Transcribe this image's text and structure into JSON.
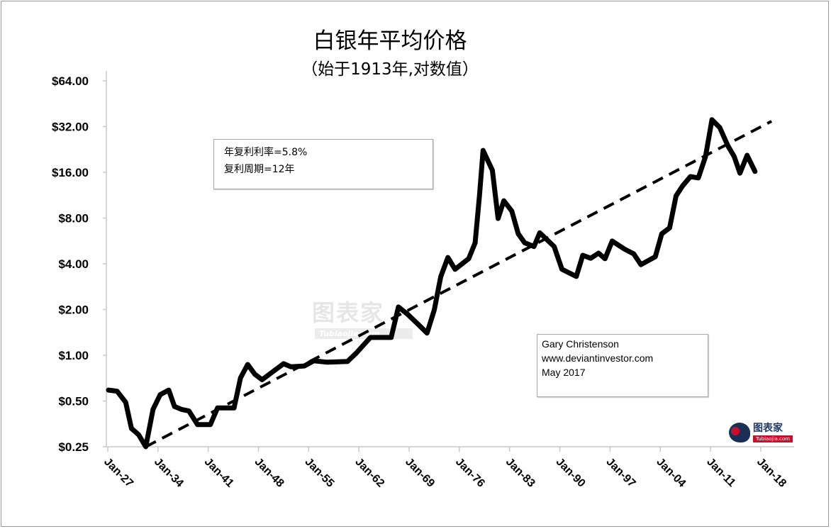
{
  "chart_data": {
    "type": "line",
    "title": "白银年平均价格",
    "subtitle": "（始于1913年,对数值）",
    "xlabel": "",
    "ylabel": "",
    "y_scale": "log2",
    "ylim": [
      0.25,
      64
    ],
    "xlim": [
      1927,
      2018
    ],
    "grid": false,
    "y_ticks": [
      "$0.25",
      "$0.50",
      "$1.00",
      "$2.00",
      "$4.00",
      "$8.00",
      "$16.00",
      "$32.00",
      "$64.00"
    ],
    "y_tick_values": [
      0.25,
      0.5,
      1,
      2,
      4,
      8,
      16,
      32,
      64
    ],
    "x_ticks": [
      "Jan-27",
      "Jan-34",
      "Jan-41",
      "Jan-48",
      "Jan-55",
      "Jan-62",
      "Jan-69",
      "Jan-76",
      "Jan-83",
      "Jan-90",
      "Jan-97",
      "Jan-04",
      "Jan-11",
      "Jan-18"
    ],
    "x_tick_values": [
      1927,
      1934,
      1941,
      1948,
      1955,
      1962,
      1969,
      1976,
      1983,
      1990,
      1997,
      2004,
      2011,
      2018
    ],
    "series": [
      {
        "style": "solid-thick",
        "color": "#000000",
        "x": [
          1927.1,
          1928.3,
          1929.5,
          1930.3,
          1931.3,
          1932.3,
          1933.3,
          1934.3,
          1935.5,
          1936.3,
          1937.3,
          1938.3,
          1939.5,
          1941.3,
          1942.3,
          1944.6,
          1945.5,
          1946.5,
          1947.5,
          1948.5,
          1949.7,
          1951.5,
          1952.5,
          1954.4,
          1955.7,
          1957.6,
          1960.4,
          1961.6,
          1962.8,
          1963.6,
          1966.5,
          1967.5,
          1968.8,
          1970.3,
          1971.5,
          1972.5,
          1973.4,
          1974.4,
          1975.4,
          1977.3,
          1978.2,
          1978.8,
          1979.3,
          1980.6,
          1981.4,
          1982.2,
          1983.3,
          1984.2,
          1985.1,
          1986.4,
          1987.2,
          1989.2,
          1990.3,
          1992.3,
          1993.2,
          1994.3,
          1995.4,
          1996.3,
          1997.3,
          1999.0,
          2000.3,
          2001.3,
          2003.3,
          2004.2,
          2005.3,
          2006.2,
          2007.1,
          2008.2,
          2009.3,
          2010.3,
          2011.2,
          2012.3,
          2013.4,
          2014.3,
          2015.1,
          2016.1,
          2017.2
        ],
        "y": [
          0.59,
          0.58,
          0.49,
          0.33,
          0.3,
          0.25,
          0.44,
          0.55,
          0.59,
          0.46,
          0.44,
          0.43,
          0.35,
          0.35,
          0.45,
          0.45,
          0.71,
          0.87,
          0.75,
          0.69,
          0.76,
          0.88,
          0.84,
          0.85,
          0.92,
          0.9,
          0.91,
          1.03,
          1.19,
          1.31,
          1.31,
          2.08,
          1.86,
          1.59,
          1.4,
          1.99,
          3.29,
          4.4,
          3.68,
          4.32,
          5.5,
          11.2,
          22.3,
          16.5,
          7.95,
          10.4,
          8.9,
          6.3,
          5.5,
          5.2,
          6.4,
          5.2,
          3.68,
          3.3,
          4.55,
          4.35,
          4.7,
          4.32,
          5.65,
          5.0,
          4.65,
          3.95,
          4.45,
          6.3,
          6.9,
          11.2,
          13.0,
          15.0,
          14.7,
          20.3,
          35.5,
          31.5,
          24.0,
          20.3,
          15.8,
          20.7,
          16.2
        ]
      },
      {
        "style": "dashed",
        "color": "#000000",
        "x": [
          1932.3,
          2019.5
        ],
        "y": [
          0.25,
          34.7
        ]
      }
    ],
    "annotations": {
      "rate_line_1": "年复利利率=5.8%",
      "rate_line_2": "复利周期=12年",
      "credit_line_1": "Gary Christenson",
      "credit_line_2": "www.deviantinvestor.com",
      "credit_line_3": "May 2017"
    }
  },
  "watermark": {
    "main": "图表家",
    "sub": "Tubiaojia.com"
  },
  "logo": {
    "text": "图表家",
    "sub": "Tubiaojia.com"
  }
}
